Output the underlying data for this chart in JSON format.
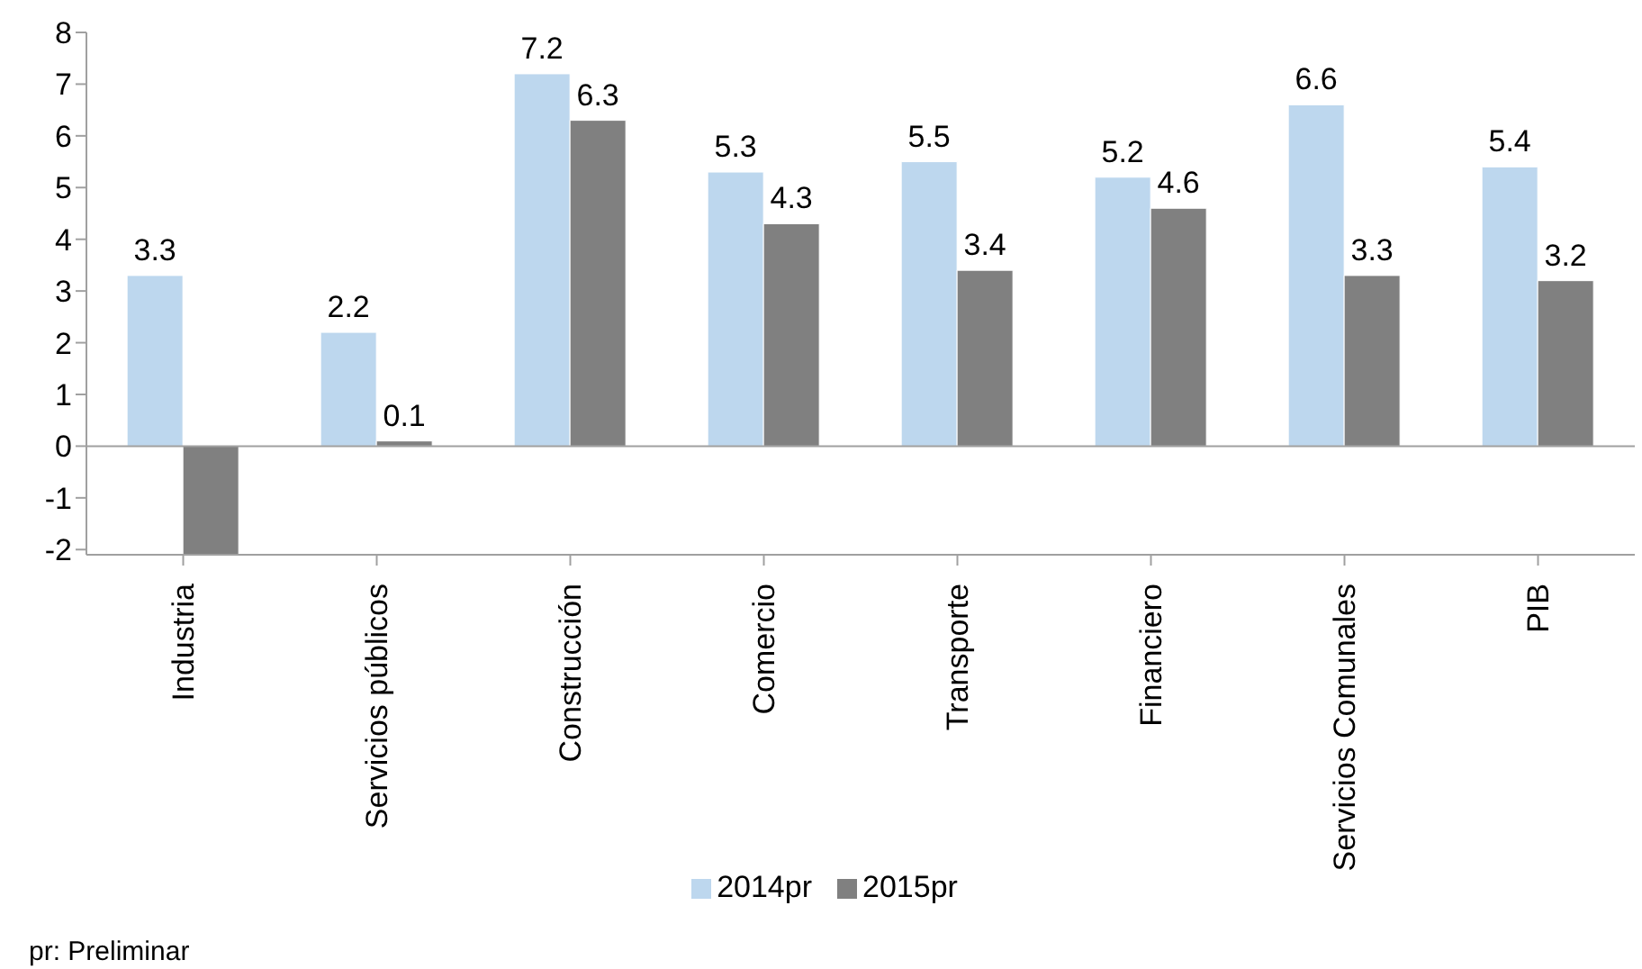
{
  "chart_data": {
    "type": "bar",
    "categories": [
      "Industria",
      "Servicios públicos",
      "Construcción",
      "Comercio",
      "Transporte",
      "Financiero",
      "Servicios Comunales",
      "PIB"
    ],
    "series": [
      {
        "name": "2014pr",
        "color": "#bdd7ee",
        "values": [
          3.3,
          2.2,
          7.2,
          5.3,
          5.5,
          5.2,
          6.6,
          5.4
        ],
        "value_labels": [
          "3.3",
          "2.2",
          "7.2",
          "5.3",
          "5.5",
          "5.2",
          "6.6",
          "5.4"
        ]
      },
      {
        "name": "2015pr",
        "color": "#808080",
        "values": [
          -2.1,
          0.1,
          6.3,
          4.3,
          3.4,
          4.6,
          3.3,
          3.2
        ],
        "value_labels": [
          null,
          "0.1",
          "6.3",
          "4.3",
          "3.4",
          "4.6",
          "3.3",
          "3.2"
        ]
      }
    ],
    "ylim": [
      -2.1,
      8
    ],
    "yticks": [
      -2,
      -1,
      0,
      1,
      2,
      3,
      4,
      5,
      6,
      7,
      8
    ],
    "legend": "bottom",
    "annotations": [
      "pr: Preliminar"
    ]
  }
}
